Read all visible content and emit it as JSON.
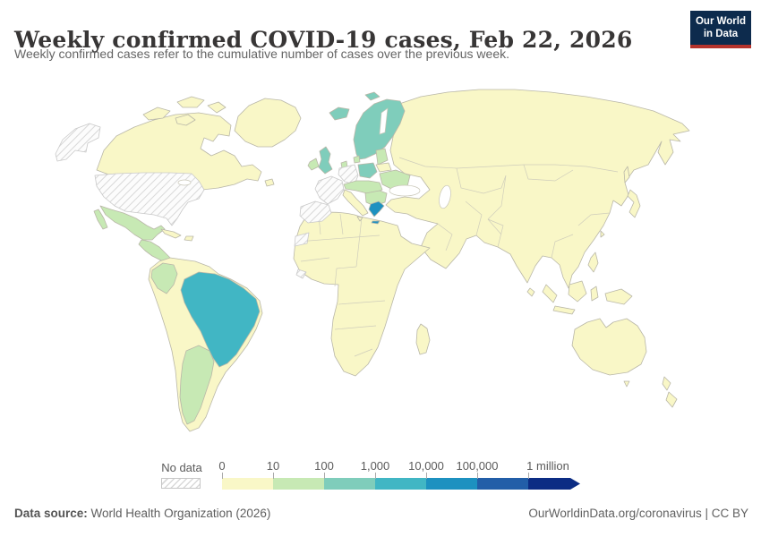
{
  "header": {
    "title": "Weekly confirmed COVID-19 cases, Feb 22, 2026",
    "subtitle": "Weekly confirmed cases refer to the cumulative number of cases over the previous week."
  },
  "logo": {
    "line1": "Our World",
    "line2": "in Data",
    "bg": "#0d2b4d",
    "accent": "#b5332c"
  },
  "legend": {
    "no_data_label": "No data",
    "ticks": [
      "0",
      "10",
      "100",
      "1,000",
      "10,000",
      "100,000",
      "1 million"
    ],
    "colors": [
      "#f9f7c7",
      "#c7e9b4",
      "#7fcdbb",
      "#41b6c4",
      "#1d91c0",
      "#225ea8",
      "#0c2c84"
    ]
  },
  "map": {
    "ocean": "#ffffff",
    "border": "#b9b7a8",
    "no_data_border": "#c9c9c9",
    "regions": {
      "canada": "b0",
      "arctic_islands": "b0",
      "newfoundland": "b0",
      "greenland": "b0",
      "alaska": "no_data",
      "usa": "no_data",
      "mexico": "b1",
      "central_america": "b1",
      "cuba": "b0",
      "hispaniola": "b0",
      "south_america": "b0",
      "colombia": "b1",
      "brazil": "b3",
      "argentina": "b1",
      "africa": "b0",
      "madagascar": "b0",
      "western_sahara": "no_data",
      "sierra_leone": "no_data",
      "iceland": "b2",
      "svalbard": "b2",
      "scandinavia": "b2",
      "denmark": "b1",
      "uk": "b2",
      "ireland": "b1",
      "netherlands": "b1",
      "germany_belgium": "no_data",
      "france": "no_data",
      "iberia": "no_data",
      "poland": "b2",
      "baltics": "b1",
      "belarus": "b0",
      "central_europe": "b1",
      "balkans": "b1",
      "ukraine": "b1",
      "italy": "b0",
      "sicily": "b0",
      "greece": "b4",
      "crete": "b4",
      "asia": "b0",
      "sakhalin": "b0",
      "japan": "b0",
      "taiwan": "b0",
      "sri_lanka": "b0",
      "philippines": "b0",
      "sumatra": "b0",
      "java": "b0",
      "borneo": "b0",
      "sulawesi": "b0",
      "new_guinea": "b0",
      "australia": "b0",
      "tasmania": "b0",
      "new_zealand_north": "b0",
      "new_zealand_south": "b0"
    }
  },
  "footer": {
    "source_label": "Data source:",
    "source_text": " World Health Organization (2026)",
    "link": "OurWorldinData.org/coronavirus",
    "separator": " | ",
    "license": "CC BY"
  }
}
